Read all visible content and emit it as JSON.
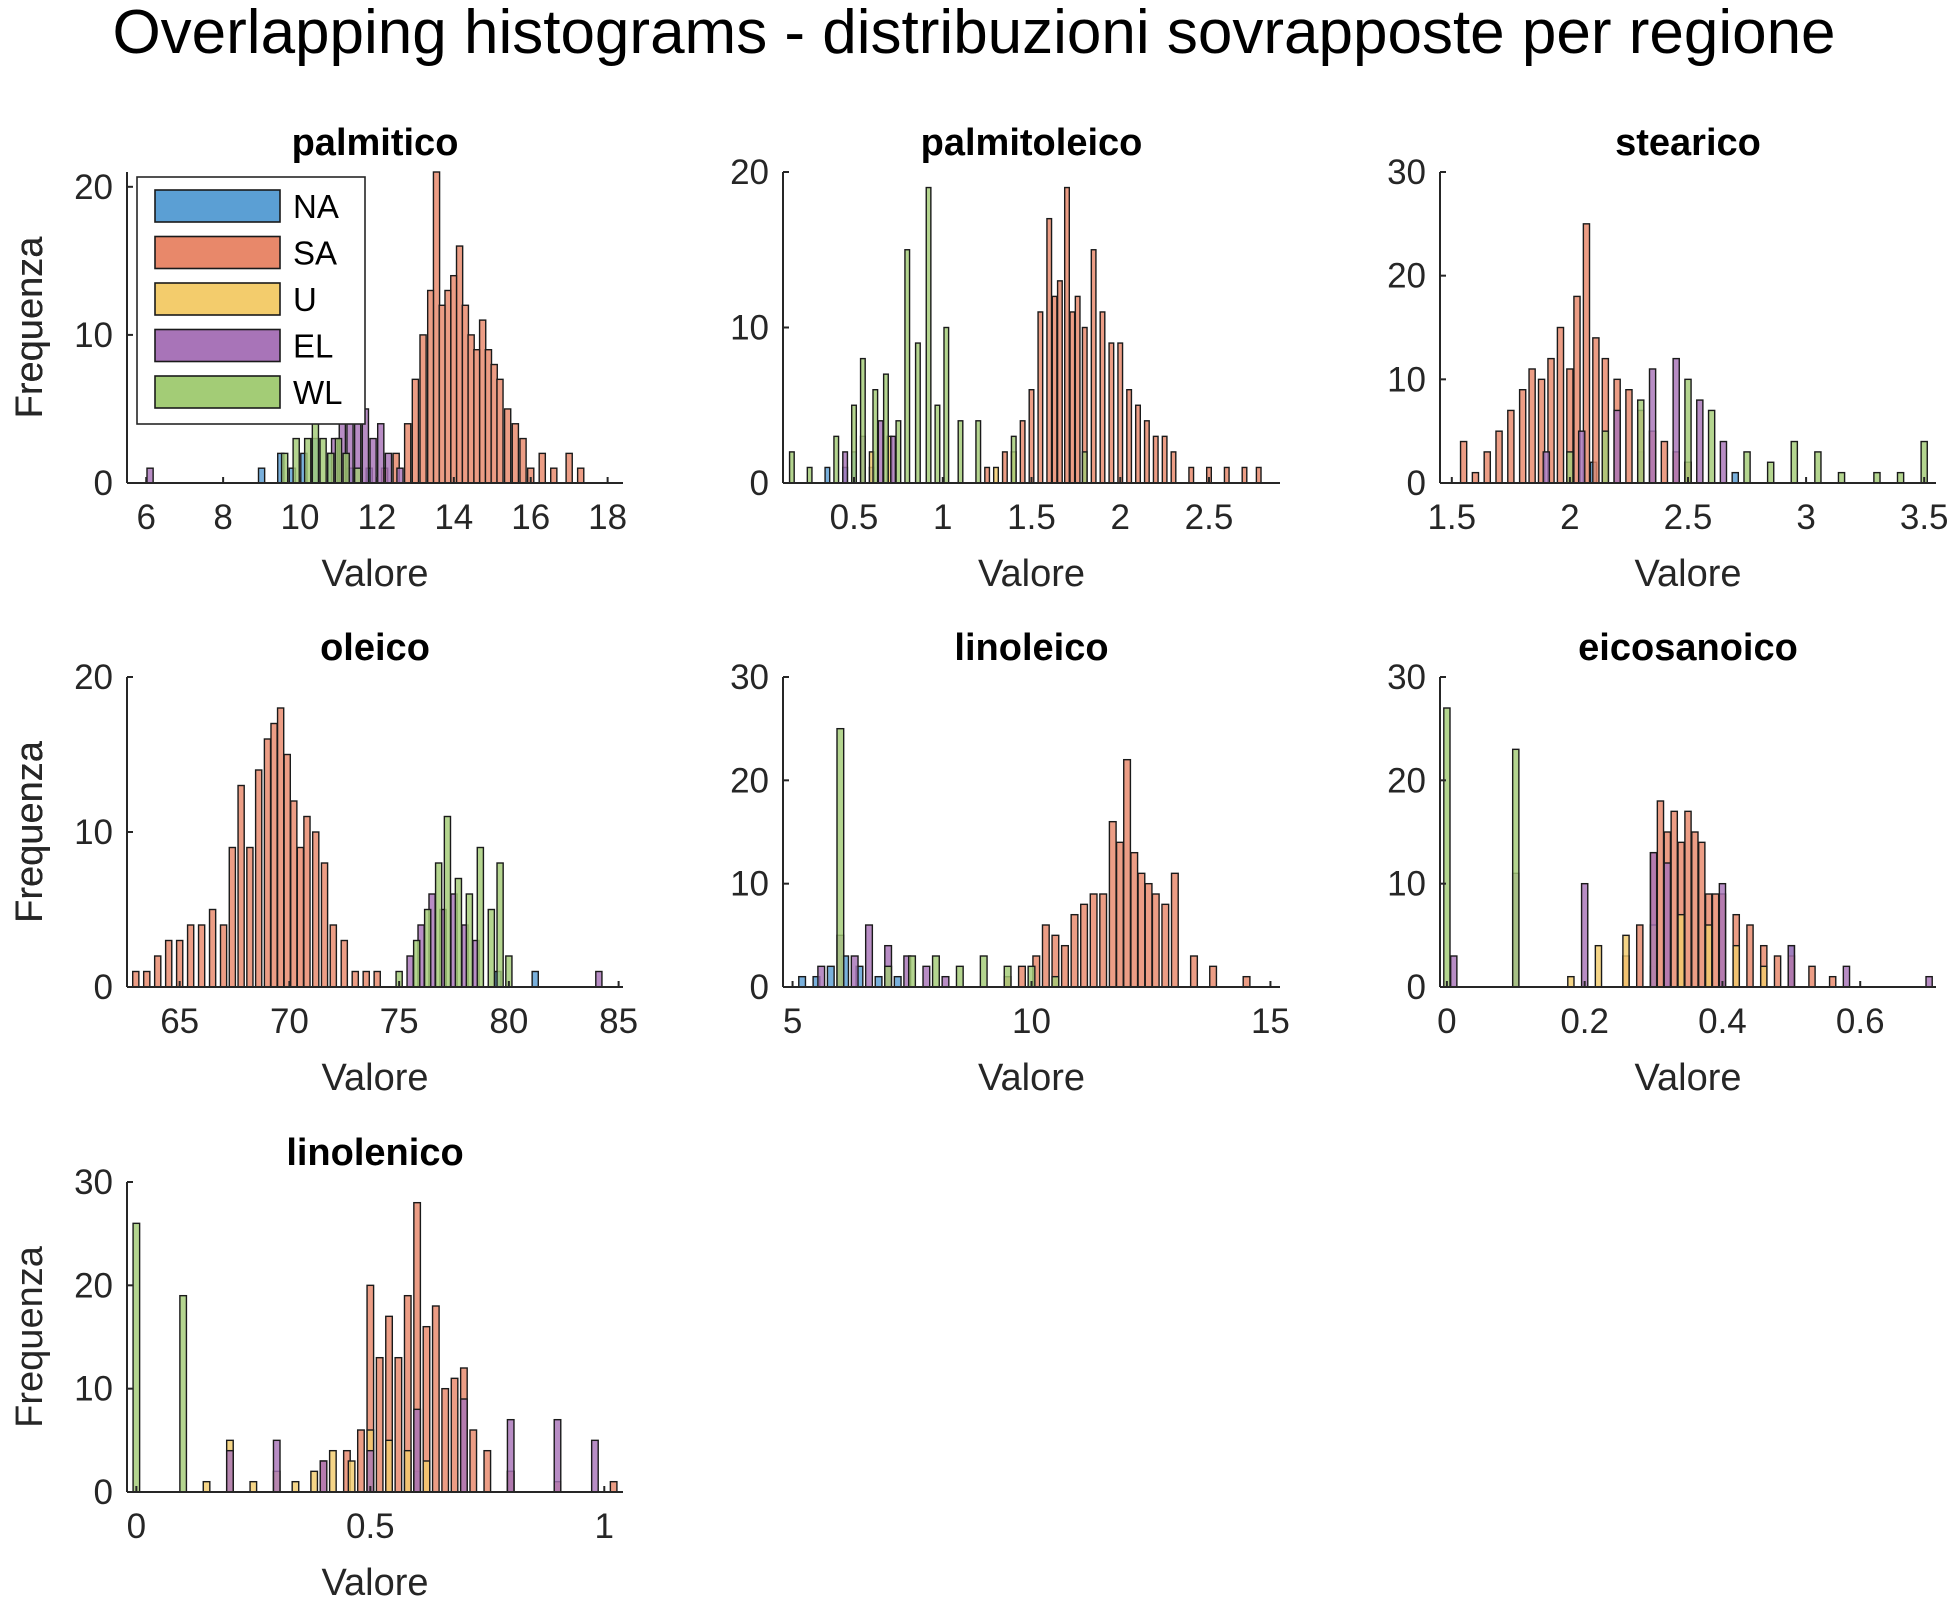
{
  "figure": {
    "title": "Overlapping histograms - distribuzioni sovrapposte per regione"
  },
  "colors": {
    "NA": "#5b9fd4",
    "SA": "#e8886a",
    "U": "#f3cc6c",
    "EL": "#a874b8",
    "WL": "#a3cc76",
    "edge": "#1a1a1a",
    "axis": "#262626"
  },
  "chart_data": [
    {
      "type": "bar",
      "title": "palmitico",
      "xlabel": "Valore",
      "ylabel": "Frequenza",
      "xlim": [
        5.5,
        18.4
      ],
      "ylim": [
        0,
        21
      ],
      "xticks": [
        6,
        8,
        10,
        12,
        14,
        16,
        18
      ],
      "yticks": [
        0,
        10,
        20
      ],
      "bin_width": 0.16,
      "legend": {
        "position": "top-left",
        "entries": [
          "NA",
          "SA",
          "U",
          "EL",
          "WL"
        ]
      },
      "series": [
        {
          "name": "NA",
          "x": [
            9.0,
            9.5,
            9.8,
            10.1,
            10.4,
            10.8,
            11.3,
            11.8
          ],
          "counts": [
            1,
            2,
            1,
            2,
            3,
            2,
            1,
            1
          ]
        },
        {
          "name": "SA",
          "x": [
            12.2,
            12.5,
            12.8,
            13.0,
            13.2,
            13.4,
            13.55,
            13.7,
            13.85,
            14.0,
            14.15,
            14.3,
            14.45,
            14.6,
            14.75,
            14.9,
            15.05,
            15.2,
            15.4,
            15.6,
            15.8,
            16.0,
            16.3,
            16.6,
            17.0,
            17.3
          ],
          "counts": [
            1,
            2,
            4,
            7,
            10,
            13,
            21,
            12,
            13,
            14,
            16,
            12,
            10,
            9,
            11,
            9,
            8,
            7,
            5,
            4,
            3,
            1,
            2,
            1,
            2,
            1
          ]
        },
        {
          "name": "EL",
          "x": [
            6.1,
            10.9,
            11.1,
            11.3,
            11.5,
            11.7,
            11.9,
            12.1,
            12.3,
            12.6
          ],
          "counts": [
            1,
            3,
            4,
            5,
            4,
            5,
            3,
            4,
            2,
            1
          ]
        },
        {
          "name": "WL",
          "x": [
            9.6,
            9.9,
            10.2,
            10.4,
            10.6,
            10.8,
            11.0,
            11.2,
            11.5
          ],
          "counts": [
            2,
            3,
            3,
            4,
            3,
            2,
            3,
            2,
            1
          ]
        }
      ]
    },
    {
      "type": "bar",
      "title": "palmitoleico",
      "xlabel": "Valore",
      "ylabel": "Frequenza",
      "xlim": [
        0.1,
        2.9
      ],
      "ylim": [
        0,
        20
      ],
      "xticks": [
        0.5,
        1,
        1.5,
        2,
        2.5
      ],
      "yticks": [
        0,
        10,
        20
      ],
      "bin_width": 0.026,
      "series": [
        {
          "name": "NA",
          "x": [
            0.35,
            0.45,
            0.5,
            0.6
          ],
          "counts": [
            1,
            1,
            2,
            1
          ]
        },
        {
          "name": "SA",
          "x": [
            1.25,
            1.35,
            1.45,
            1.5,
            1.55,
            1.6,
            1.63,
            1.66,
            1.7,
            1.73,
            1.76,
            1.8,
            1.85,
            1.9,
            1.95,
            2.0,
            2.05,
            2.1,
            2.15,
            2.2,
            2.25,
            2.3,
            2.4,
            2.5,
            2.6,
            2.7,
            2.78
          ],
          "counts": [
            1,
            2,
            4,
            6,
            11,
            17,
            12,
            13,
            19,
            11,
            12,
            10,
            15,
            11,
            9,
            9,
            6,
            5,
            4,
            3,
            3,
            2,
            1,
            1,
            1,
            1,
            1
          ]
        },
        {
          "name": "U",
          "x": [
            0.6,
            0.7,
            1.3,
            1.4
          ],
          "counts": [
            2,
            3,
            1,
            2
          ]
        },
        {
          "name": "EL",
          "x": [
            0.45,
            0.55,
            0.65,
            0.72
          ],
          "counts": [
            2,
            3,
            4,
            3
          ]
        },
        {
          "name": "WL",
          "x": [
            0.15,
            0.25,
            0.4,
            0.5,
            0.55,
            0.62,
            0.68,
            0.75,
            0.8,
            0.86,
            0.92,
            0.97,
            1.02,
            1.1,
            1.2,
            1.4,
            1.8
          ],
          "counts": [
            2,
            1,
            3,
            5,
            8,
            6,
            7,
            4,
            15,
            9,
            19,
            5,
            10,
            4,
            4,
            3,
            2
          ]
        }
      ]
    },
    {
      "type": "bar",
      "title": "stearico",
      "xlabel": "Valore",
      "ylabel": "Frequenza",
      "xlim": [
        1.45,
        3.55
      ],
      "ylim": [
        0,
        30
      ],
      "xticks": [
        1.5,
        2,
        2.5,
        3,
        3.5
      ],
      "yticks": [
        0,
        10,
        20,
        30
      ],
      "bin_width": 0.026,
      "series": [
        {
          "name": "SA",
          "x": [
            1.55,
            1.6,
            1.65,
            1.7,
            1.75,
            1.8,
            1.84,
            1.88,
            1.92,
            1.96,
            2.0,
            2.03,
            2.07,
            2.11,
            2.15,
            2.2,
            2.25,
            2.3,
            2.35,
            2.4,
            2.45,
            2.5
          ],
          "counts": [
            4,
            1,
            3,
            5,
            7,
            9,
            11,
            10,
            12,
            15,
            11,
            18,
            25,
            14,
            12,
            10,
            9,
            7,
            5,
            4,
            3,
            2
          ]
        },
        {
          "name": "NA",
          "x": [
            2.1,
            2.3,
            2.5,
            2.7
          ],
          "counts": [
            2,
            3,
            2,
            1
          ]
        },
        {
          "name": "EL",
          "x": [
            1.9,
            2.05,
            2.2,
            2.35,
            2.45,
            2.55,
            2.65
          ],
          "counts": [
            3,
            5,
            7,
            11,
            12,
            8,
            4
          ]
        },
        {
          "name": "WL",
          "x": [
            2.0,
            2.15,
            2.3,
            2.5,
            2.6,
            2.75,
            2.85,
            2.95,
            3.05,
            3.15,
            3.3,
            3.4,
            3.5
          ],
          "counts": [
            3,
            5,
            8,
            10,
            7,
            3,
            2,
            4,
            3,
            1,
            1,
            1,
            4
          ]
        }
      ]
    },
    {
      "type": "bar",
      "title": "oleico",
      "xlabel": "Valore",
      "ylabel": "Frequenza",
      "xlim": [
        62.6,
        85.2
      ],
      "ylim": [
        0,
        20
      ],
      "xticks": [
        65,
        70,
        75,
        80,
        85
      ],
      "yticks": [
        0,
        10,
        20
      ],
      "bin_width": 0.28,
      "series": [
        {
          "name": "SA",
          "x": [
            63.0,
            63.5,
            64.0,
            64.5,
            65.0,
            65.5,
            66.0,
            66.5,
            67.0,
            67.4,
            67.8,
            68.2,
            68.6,
            69.0,
            69.3,
            69.6,
            69.9,
            70.2,
            70.5,
            70.8,
            71.2,
            71.6,
            72.0,
            72.5,
            73.0,
            73.5,
            74.0
          ],
          "counts": [
            1,
            1,
            2,
            3,
            3,
            4,
            4,
            5,
            4,
            9,
            13,
            9,
            14,
            16,
            17,
            18,
            15,
            12,
            9,
            11,
            10,
            8,
            4,
            3,
            1,
            1,
            1
          ]
        },
        {
          "name": "EL",
          "x": [
            75.5,
            76.0,
            76.5,
            77.0,
            77.5,
            78.0,
            78.5,
            84.1
          ],
          "counts": [
            2,
            4,
            6,
            5,
            6,
            4,
            3,
            1
          ]
        },
        {
          "name": "WL",
          "x": [
            75.0,
            75.8,
            76.3,
            76.8,
            77.2,
            77.7,
            78.2,
            78.7,
            79.2,
            79.6,
            80.0
          ],
          "counts": [
            1,
            3,
            5,
            8,
            11,
            7,
            6,
            9,
            5,
            8,
            2
          ]
        },
        {
          "name": "NA",
          "x": [
            79.5,
            81.2
          ],
          "counts": [
            1,
            1
          ]
        }
      ]
    },
    {
      "type": "bar",
      "title": "linoleico",
      "xlabel": "Valore",
      "ylabel": "Frequenza",
      "xlim": [
        4.8,
        15.2
      ],
      "ylim": [
        0,
        30
      ],
      "xticks": [
        5,
        10,
        15
      ],
      "yticks": [
        0,
        10,
        20,
        30
      ],
      "bin_width": 0.14,
      "series": [
        {
          "name": "NA",
          "x": [
            5.2,
            5.5,
            5.8,
            6.1,
            6.4,
            6.8,
            7.2
          ],
          "counts": [
            1,
            1,
            2,
            3,
            2,
            1,
            1
          ]
        },
        {
          "name": "EL",
          "x": [
            5.6,
            6.0,
            6.3,
            6.6,
            7.0,
            7.4,
            7.8,
            8.2
          ],
          "counts": [
            2,
            5,
            3,
            6,
            4,
            3,
            2,
            1
          ]
        },
        {
          "name": "WL",
          "x": [
            6.0,
            7.0,
            7.5,
            8.0,
            8.5,
            9.0,
            9.5,
            10.0,
            10.5
          ],
          "counts": [
            25,
            2,
            3,
            3,
            2,
            3,
            2,
            2,
            1
          ]
        },
        {
          "name": "SA",
          "x": [
            9.5,
            9.8,
            10.1,
            10.3,
            10.5,
            10.7,
            10.9,
            11.1,
            11.3,
            11.5,
            11.7,
            11.85,
            12.0,
            12.15,
            12.3,
            12.45,
            12.6,
            12.8,
            13.0,
            13.4,
            13.8,
            14.5
          ],
          "counts": [
            1,
            2,
            3,
            6,
            5,
            4,
            7,
            8,
            9,
            9,
            16,
            14,
            22,
            13,
            11,
            10,
            9,
            8,
            11,
            3,
            2,
            1
          ]
        }
      ]
    },
    {
      "type": "bar",
      "title": "eicosanoico",
      "xlabel": "Valore",
      "ylabel": "Frequenza",
      "xlim": [
        -0.01,
        0.71
      ],
      "ylim": [
        0,
        30
      ],
      "xticks": [
        0,
        0.2,
        0.4,
        0.6
      ],
      "yticks": [
        0,
        10,
        20,
        30
      ],
      "bin_width": 0.009,
      "series": [
        {
          "name": "WL",
          "x": [
            0.0,
            0.1
          ],
          "counts": [
            27,
            23
          ]
        },
        {
          "name": "SA",
          "x": [
            0.26,
            0.28,
            0.3,
            0.31,
            0.32,
            0.33,
            0.34,
            0.35,
            0.36,
            0.37,
            0.38,
            0.39,
            0.4,
            0.42,
            0.44,
            0.46,
            0.48,
            0.5,
            0.53,
            0.56
          ],
          "counts": [
            3,
            6,
            13,
            18,
            15,
            17,
            14,
            17,
            15,
            14,
            9,
            9,
            9,
            7,
            6,
            4,
            3,
            3,
            2,
            1
          ]
        },
        {
          "name": "U",
          "x": [
            0.18,
            0.22,
            0.26,
            0.3,
            0.34,
            0.38,
            0.42,
            0.46
          ],
          "counts": [
            1,
            4,
            5,
            6,
            7,
            6,
            4,
            2
          ]
        },
        {
          "name": "EL",
          "x": [
            0.01,
            0.1,
            0.2,
            0.3,
            0.32,
            0.4,
            0.5,
            0.58,
            0.7
          ],
          "counts": [
            3,
            11,
            10,
            13,
            12,
            10,
            4,
            2,
            1
          ]
        },
        {
          "name": "NA",
          "x": [
            0.3,
            0.5
          ],
          "counts": [
            2,
            4
          ]
        }
      ]
    },
    {
      "type": "bar",
      "title": "linolenico",
      "xlabel": "Valore",
      "ylabel": "Frequenza",
      "xlim": [
        -0.02,
        1.04
      ],
      "ylim": [
        0,
        30
      ],
      "xticks": [
        0,
        0.5,
        1
      ],
      "yticks": [
        0,
        10,
        20,
        30
      ],
      "bin_width": 0.014,
      "series": [
        {
          "name": "WL",
          "x": [
            0.0,
            0.1
          ],
          "counts": [
            26,
            19
          ]
        },
        {
          "name": "SA",
          "x": [
            0.4,
            0.45,
            0.48,
            0.5,
            0.52,
            0.54,
            0.56,
            0.58,
            0.6,
            0.62,
            0.64,
            0.66,
            0.68,
            0.7,
            0.72,
            0.75,
            0.8,
            0.9,
            1.02
          ],
          "counts": [
            3,
            4,
            6,
            20,
            13,
            17,
            13,
            19,
            28,
            16,
            18,
            10,
            11,
            12,
            6,
            4,
            2,
            1,
            1
          ]
        },
        {
          "name": "U",
          "x": [
            0.15,
            0.2,
            0.25,
            0.3,
            0.34,
            0.38,
            0.42,
            0.46,
            0.5,
            0.54,
            0.58,
            0.62
          ],
          "counts": [
            1,
            5,
            1,
            2,
            1,
            2,
            4,
            3,
            6,
            5,
            4,
            3
          ]
        },
        {
          "name": "EL",
          "x": [
            0.2,
            0.3,
            0.4,
            0.5,
            0.6,
            0.7,
            0.8,
            0.9,
            0.98
          ],
          "counts": [
            4,
            5,
            3,
            4,
            8,
            9,
            7,
            7,
            5
          ]
        },
        {
          "name": "NA",
          "x": [
            0.6,
            0.8
          ],
          "counts": [
            2,
            2
          ]
        }
      ]
    }
  ]
}
